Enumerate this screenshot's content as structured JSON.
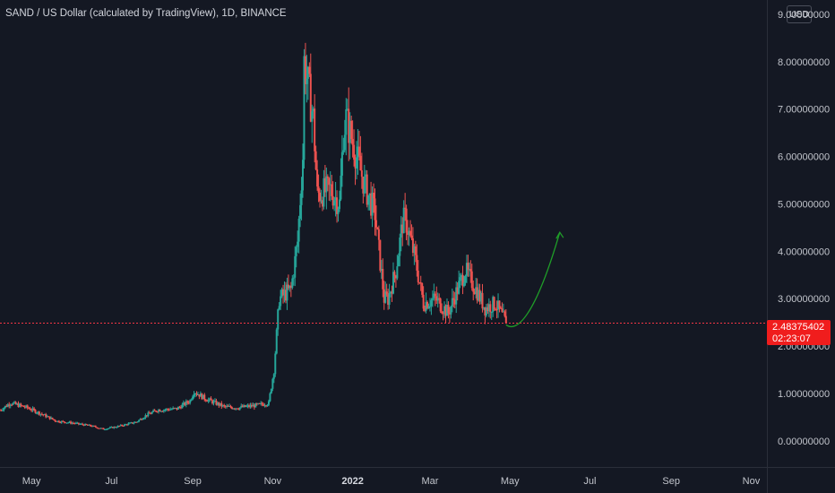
{
  "header": {
    "title": "SAND / US Dollar (calculated by TradingView), 1D, BINANCE",
    "currency": "USD"
  },
  "price_badge": {
    "price": "2.48375402",
    "countdown": "02:23:07"
  },
  "colors": {
    "background": "#141823",
    "up": "#26a69a",
    "down": "#ef5350",
    "price_line": "#f23645",
    "arrow": "#1f9d28",
    "badge": "#f01d1d"
  },
  "chart_data": {
    "type": "candlestick",
    "title": "SAND / US Dollar (calculated by TradingView), 1D, BINANCE",
    "ylim": [
      -0.55,
      9.3
    ],
    "y_ticks": [
      {
        "value": 0,
        "label": "0.00000000"
      },
      {
        "value": 1,
        "label": "1.00000000"
      },
      {
        "value": 2,
        "label": "2.00000000"
      },
      {
        "value": 3,
        "label": "3.00000000"
      },
      {
        "value": 4,
        "label": "4.00000000"
      },
      {
        "value": 5,
        "label": "5.00000000"
      },
      {
        "value": 6,
        "label": "6.00000000"
      },
      {
        "value": 7,
        "label": "7.00000000"
      },
      {
        "value": 8,
        "label": "8.00000000"
      },
      {
        "value": 9,
        "label": "9.00000000"
      }
    ],
    "x_ticks": [
      {
        "label": "May",
        "date": "2021-05-01"
      },
      {
        "label": "Jul",
        "date": "2021-07-01"
      },
      {
        "label": "Sep",
        "date": "2021-09-01"
      },
      {
        "label": "Nov",
        "date": "2021-11-01"
      },
      {
        "label": "2022",
        "date": "2022-01-01",
        "bold": true
      },
      {
        "label": "Mar",
        "date": "2022-03-01"
      },
      {
        "label": "May",
        "date": "2022-05-01"
      },
      {
        "label": "Jul",
        "date": "2022-07-01"
      },
      {
        "label": "Sep",
        "date": "2022-09-01"
      },
      {
        "label": "Nov",
        "date": "2022-11-01"
      }
    ],
    "x_range": [
      "2021-04-07",
      "2022-11-13"
    ],
    "last_price": 2.48375402,
    "price_anchors": [
      [
        "2021-04-07",
        0.65
      ],
      [
        "2021-04-15",
        0.8
      ],
      [
        "2021-04-28",
        0.7
      ],
      [
        "2021-05-10",
        0.55
      ],
      [
        "2021-05-20",
        0.42
      ],
      [
        "2021-06-01",
        0.38
      ],
      [
        "2021-06-15",
        0.32
      ],
      [
        "2021-06-25",
        0.25
      ],
      [
        "2021-07-05",
        0.3
      ],
      [
        "2021-07-20",
        0.4
      ],
      [
        "2021-07-28",
        0.55
      ],
      [
        "2021-08-05",
        0.65
      ],
      [
        "2021-08-20",
        0.68
      ],
      [
        "2021-08-30",
        0.85
      ],
      [
        "2021-09-02",
        1.05
      ],
      [
        "2021-09-10",
        0.9
      ],
      [
        "2021-09-25",
        0.72
      ],
      [
        "2021-10-05",
        0.7
      ],
      [
        "2021-10-20",
        0.75
      ],
      [
        "2021-10-29",
        0.8
      ],
      [
        "2021-11-02",
        1.5
      ],
      [
        "2021-11-06",
        3.0
      ],
      [
        "2021-11-15",
        3.2
      ],
      [
        "2021-11-20",
        4.2
      ],
      [
        "2021-11-24",
        6.0
      ],
      [
        "2021-11-25",
        8.0
      ],
      [
        "2021-11-28",
        7.5
      ],
      [
        "2021-12-02",
        6.8
      ],
      [
        "2021-12-05",
        5.2
      ],
      [
        "2021-12-15",
        5.3
      ],
      [
        "2021-12-22",
        5.0
      ],
      [
        "2021-12-25",
        6.5
      ],
      [
        "2021-12-27",
        6.8
      ],
      [
        "2022-01-03",
        6.1
      ],
      [
        "2022-01-10",
        5.4
      ],
      [
        "2022-01-18",
        4.8
      ],
      [
        "2022-01-25",
        3.0
      ],
      [
        "2022-01-28",
        3.0
      ],
      [
        "2022-02-03",
        3.6
      ],
      [
        "2022-02-08",
        4.6
      ],
      [
        "2022-02-10",
        4.7
      ],
      [
        "2022-02-18",
        3.8
      ],
      [
        "2022-02-24",
        2.9
      ],
      [
        "2022-03-05",
        3.0
      ],
      [
        "2022-03-15",
        2.7
      ],
      [
        "2022-03-22",
        3.2
      ],
      [
        "2022-03-28",
        3.6
      ],
      [
        "2022-04-05",
        3.2
      ],
      [
        "2022-04-12",
        2.8
      ],
      [
        "2022-04-20",
        2.9
      ],
      [
        "2022-04-28",
        2.48
      ]
    ],
    "projection_arrow": {
      "points": [
        [
          "2022-04-28",
          2.45
        ],
        [
          "2022-05-06",
          2.28
        ],
        [
          "2022-05-20",
          2.6
        ],
        [
          "2022-06-08",
          4.4
        ]
      ],
      "direction": "up"
    }
  }
}
